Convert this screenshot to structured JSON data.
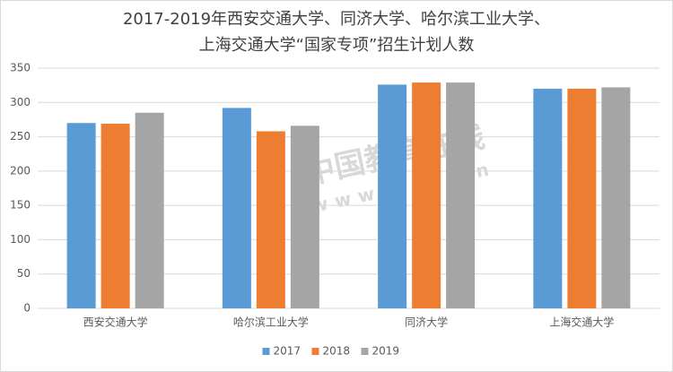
{
  "chart_data": {
    "type": "bar",
    "title": [
      "2017-2019年西安交通大学、同济大学、哈尔滨工业大学、",
      "上海交通大学“国家专项”招生计划人数"
    ],
    "categories": [
      "西安交通大学",
      "哈尔滨工业大学",
      "同济大学",
      "上海交通大学"
    ],
    "series": [
      {
        "name": "2017",
        "color": "#5b9bd5",
        "values": [
          270,
          292,
          326,
          320
        ]
      },
      {
        "name": "2018",
        "color": "#ed7d31",
        "values": [
          269,
          258,
          329,
          320
        ]
      },
      {
        "name": "2019",
        "color": "#a5a5a5",
        "values": [
          285,
          266,
          329,
          322
        ]
      }
    ],
    "ylim": [
      0,
      350
    ],
    "yticks": [
      0,
      50,
      100,
      150,
      200,
      250,
      300,
      350
    ],
    "grid": true,
    "legend": "bottom",
    "watermark": [
      "中国教育在线",
      "www.eol.cn"
    ]
  }
}
